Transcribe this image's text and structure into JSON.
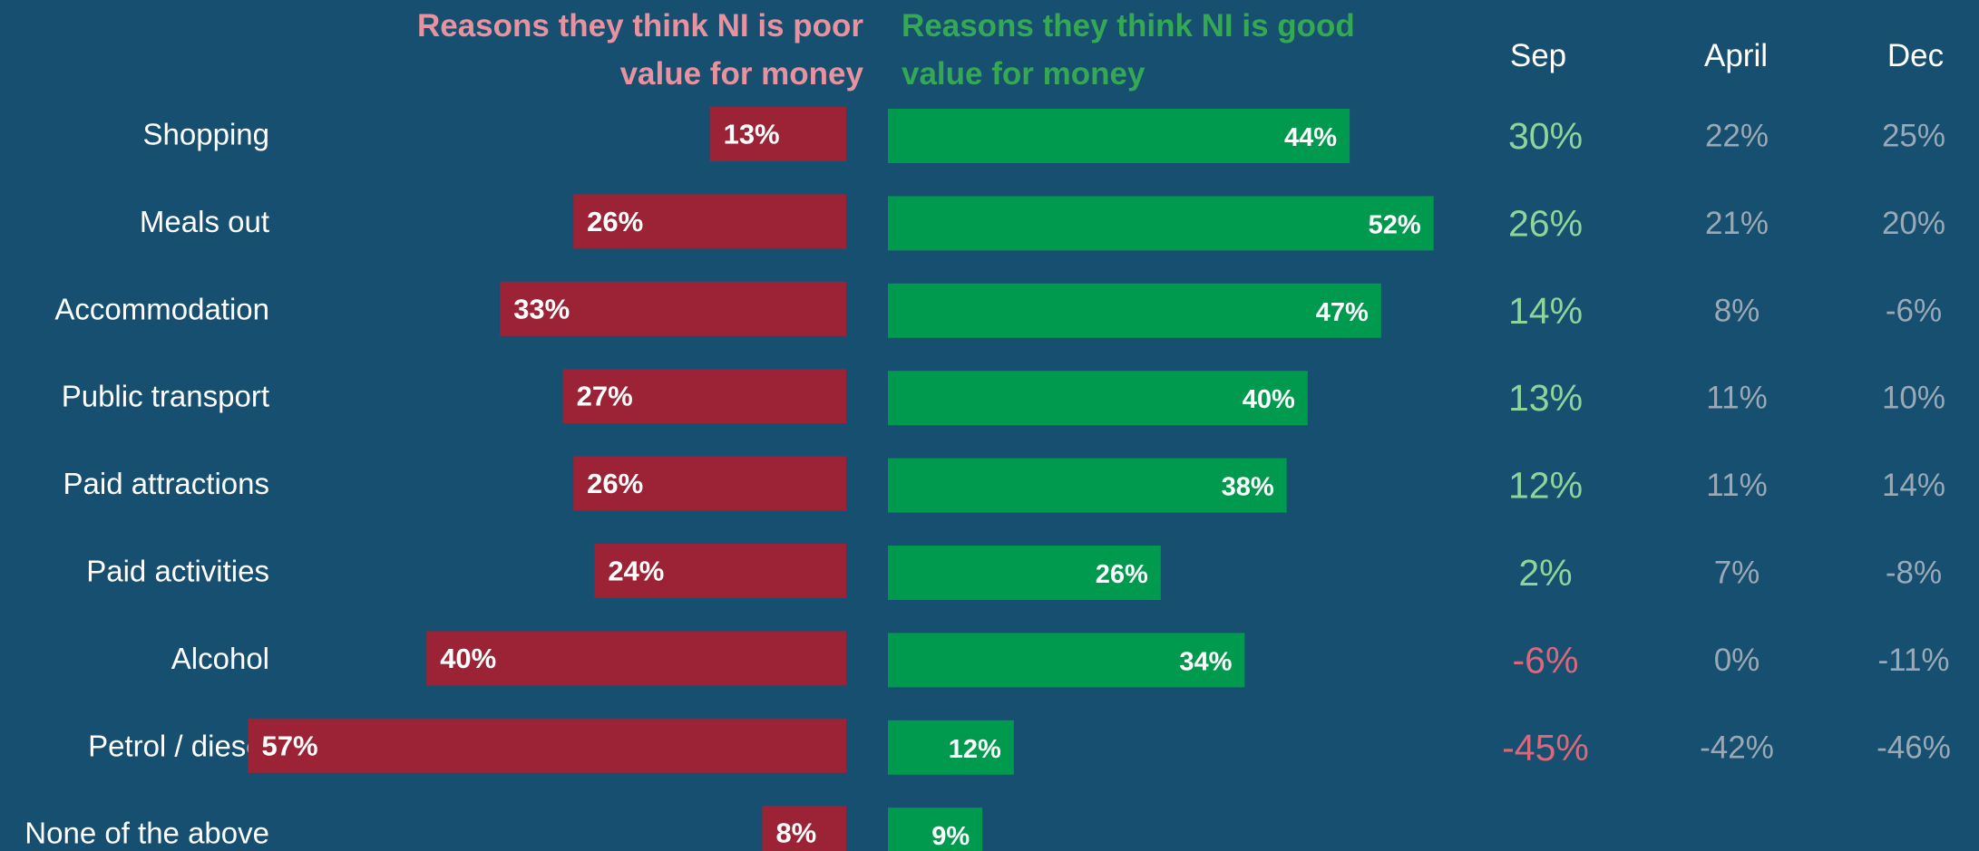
{
  "headers": {
    "poor": "Reasons they think NI is poor value for money",
    "good": "Reasons they think NI is good value for money",
    "columns": [
      "Sep",
      "April",
      "Dec"
    ]
  },
  "colors": {
    "background": "#174f70",
    "poor_bar": "#9b2335",
    "good_bar": "#009a4e",
    "poor_header": "#e8929f",
    "good_header": "#34a853",
    "sep_positive": "#8fd49a",
    "sep_negative": "#d9687c",
    "other_columns": "#9aa9b6",
    "label_text": "#ffffff"
  },
  "chart_data": {
    "type": "bar",
    "categories": [
      "Shopping",
      "Meals out",
      "Accommodation",
      "Public transport",
      "Paid attractions",
      "Paid activities",
      "Alcohol",
      "Petrol / diesel",
      "None of the above"
    ],
    "series": [
      {
        "name": "Reasons they think NI is poor value for money",
        "values": [
          13,
          26,
          33,
          27,
          26,
          24,
          40,
          57,
          8
        ],
        "labels": [
          "13%",
          "26%",
          "33%",
          "27%",
          "26%",
          "24%",
          "40%",
          "57%",
          "8%"
        ]
      },
      {
        "name": "Reasons they think NI is good value for money",
        "values": [
          44,
          52,
          47,
          40,
          38,
          26,
          34,
          12,
          9
        ],
        "labels": [
          "44%",
          "52%",
          "47%",
          "40%",
          "38%",
          "26%",
          "34%",
          "12%",
          "9%"
        ]
      }
    ],
    "table": {
      "columns": [
        "Sep",
        "April",
        "Dec"
      ],
      "rows": [
        [
          "30%",
          "22%",
          "25%"
        ],
        [
          "26%",
          "21%",
          "20%"
        ],
        [
          "14%",
          "8%",
          "-6%"
        ],
        [
          "13%",
          "11%",
          "10%"
        ],
        [
          "12%",
          "11%",
          "14%"
        ],
        [
          "2%",
          "7%",
          "-8%"
        ],
        [
          "-6%",
          "0%",
          "-11%"
        ],
        [
          "-45%",
          "-42%",
          "-46%"
        ],
        [
          "",
          "",
          ""
        ]
      ]
    }
  }
}
